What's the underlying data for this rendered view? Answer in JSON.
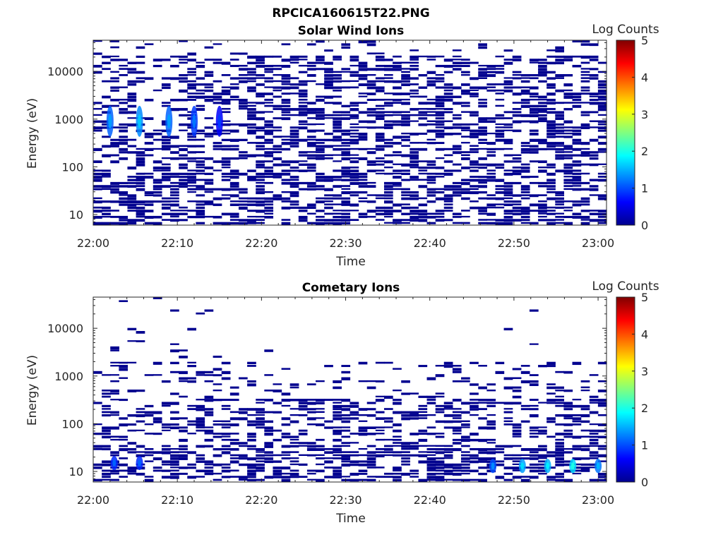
{
  "figure": {
    "title": "RPCICA160615T22.PNG"
  },
  "colors": {
    "background": "#ffffff",
    "axis": "#262626",
    "cell_base": "#00008f",
    "colormap": [
      "#00008f",
      "#0000ff",
      "#00ffff",
      "#ffff00",
      "#ff0000",
      "#800000"
    ]
  },
  "colormap_name": "jet",
  "chart_data": [
    {
      "type": "heatmap",
      "title": "Solar Wind Ions",
      "xlabel": "Time",
      "ylabel": "Energy (eV)",
      "yscale": "log",
      "xlim": [
        "22:00",
        "23:01"
      ],
      "ylim": [
        6,
        45000
      ],
      "xticks": [
        "22:00",
        "22:10",
        "22:20",
        "22:30",
        "22:40",
        "22:50",
        "23:00"
      ],
      "yticks": [
        "10",
        "100",
        "1000",
        "10000"
      ],
      "colorbar": {
        "label": "Log Counts",
        "range": [
          0,
          5
        ],
        "ticks": [
          "0",
          "1",
          "2",
          "3",
          "4",
          "5"
        ]
      },
      "grid": false,
      "hotspots": [
        {
          "time": "22:02",
          "energy": 900,
          "value": 1.1
        },
        {
          "time": "22:05.5",
          "energy": 900,
          "value": 1.3
        },
        {
          "time": "22:09",
          "energy": 900,
          "value": 1.1
        },
        {
          "time": "22:12",
          "energy": 900,
          "value": 0.9
        },
        {
          "time": "22:15",
          "energy": 900,
          "value": 0.6
        }
      ]
    },
    {
      "type": "heatmap",
      "title": "Cometary Ions",
      "xlabel": "Time",
      "ylabel": "Energy (eV)",
      "yscale": "log",
      "xlim": [
        "22:00",
        "23:01"
      ],
      "ylim": [
        6,
        45000
      ],
      "xticks": [
        "22:00",
        "22:10",
        "22:20",
        "22:30",
        "22:40",
        "22:50",
        "23:00"
      ],
      "yticks": [
        "10",
        "100",
        "1000",
        "10000"
      ],
      "colorbar": {
        "label": "Log Counts",
        "range": [
          0,
          5
        ],
        "ticks": [
          "0",
          "1",
          "2",
          "3",
          "4",
          "5"
        ]
      },
      "grid": false,
      "hotspots": [
        {
          "time": "22:02.5",
          "energy": 15,
          "value": 0.8
        },
        {
          "time": "22:05.5",
          "energy": 15,
          "value": 0.8
        },
        {
          "time": "22:47.5",
          "energy": 13,
          "value": 1.0
        },
        {
          "time": "22:51",
          "energy": 13,
          "value": 1.4
        },
        {
          "time": "22:54",
          "energy": 13,
          "value": 1.5
        },
        {
          "time": "22:57",
          "energy": 13,
          "value": 1.7
        },
        {
          "time": "23:00",
          "energy": 13,
          "value": 1.2
        }
      ]
    }
  ]
}
